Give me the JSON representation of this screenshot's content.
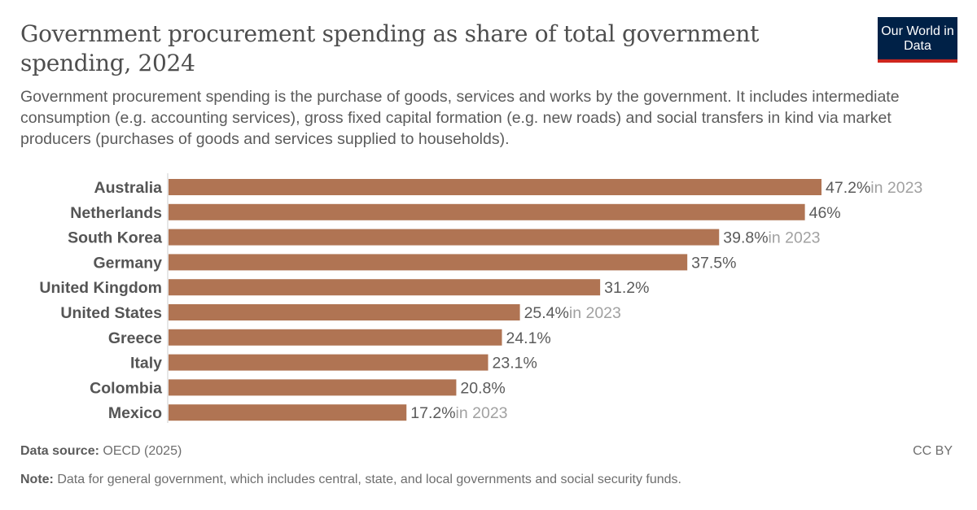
{
  "header": {
    "title": "Government procurement spending as share of total government spending, 2024",
    "subtitle": "Government procurement spending is the purchase of goods, services and works by the government. It includes intermediate consumption (e.g. accounting services), gross fixed capital formation (e.g. new roads) and social transfers in kind via market producers (purchases of goods and services supplied to households).",
    "logo": "Our World in Data"
  },
  "chart_data": {
    "type": "bar",
    "orientation": "horizontal",
    "categories": [
      "Australia",
      "Netherlands",
      "South Korea",
      "Germany",
      "United Kingdom",
      "United States",
      "Greece",
      "Italy",
      "Colombia",
      "Mexico"
    ],
    "values": [
      47.2,
      46,
      39.8,
      37.5,
      31.2,
      25.4,
      24.1,
      23.1,
      20.8,
      17.2
    ],
    "value_labels": [
      "47.2%",
      "46%",
      "39.8%",
      "37.5%",
      "31.2%",
      "25.4%",
      "24.1%",
      "23.1%",
      "20.8%",
      "17.2%"
    ],
    "year_notes": [
      "in 2023",
      "",
      "in 2023",
      "",
      "",
      "in 2023",
      "",
      "",
      "",
      "in 2023"
    ],
    "unit": "%",
    "xlim": [
      0,
      47.2
    ],
    "grid": false,
    "bar_color": "#b07453"
  },
  "footer": {
    "source_label": "Data source:",
    "source": "OECD (2025)",
    "license": "CC BY",
    "note_label": "Note:",
    "note": "Data for general government, which includes central, state, and local governments and social security funds."
  }
}
